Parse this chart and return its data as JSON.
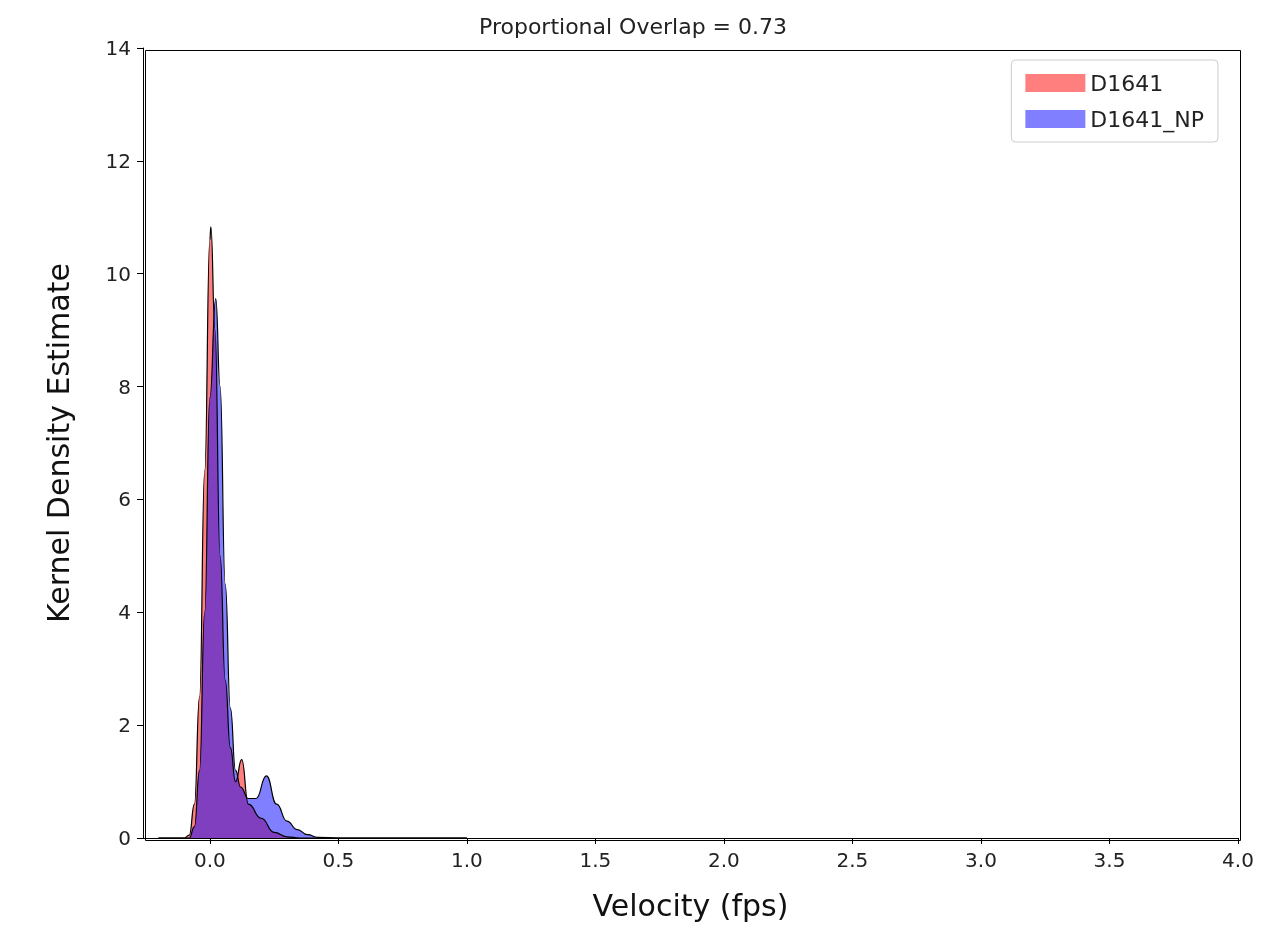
{
  "chart_data": {
    "type": "area",
    "title": "Proportional Overlap = 0.73",
    "xlabel": "Velocity (fps)",
    "ylabel": "Kernel Density Estimate",
    "xlim": [
      -0.26,
      4.0
    ],
    "xticks": [
      {
        "value": 0,
        "label": "0.0"
      },
      {
        "value": 0.5,
        "label": "0.5"
      },
      {
        "value": 1,
        "label": "1.0"
      },
      {
        "value": 1.5,
        "label": "1.5"
      },
      {
        "value": 2,
        "label": "2.0"
      },
      {
        "value": 2.5,
        "label": "2.5"
      },
      {
        "value": 3,
        "label": "3.0"
      },
      {
        "value": 3.5,
        "label": "3.5"
      },
      {
        "value": 4,
        "label": "4.0"
      }
    ],
    "ylim": [
      0,
      14
    ],
    "yticks": [
      0,
      2,
      4,
      6,
      8,
      10,
      12,
      14
    ],
    "grid": false,
    "legend": "top right",
    "marker": "none",
    "series": [
      {
        "name": "D1641",
        "color": "#ff0000",
        "x": [
          -0.2,
          -0.1,
          -0.08,
          -0.06,
          -0.04,
          -0.02,
          0,
          0.004,
          0.02,
          0.04,
          0.06,
          0.08,
          0.1,
          0.124,
          0.15,
          0.2,
          0.25,
          0.3,
          0.35,
          1.0
        ],
        "values": [
          0,
          0,
          0.05,
          0.6,
          2.5,
          6.5,
          10.6,
          10.83,
          9.0,
          5.0,
          2.8,
          1.6,
          1.0,
          1.39,
          0.6,
          0.35,
          0.1,
          0.02,
          0,
          0
        ]
      },
      {
        "name": "D1641_NP",
        "color": "#0000ff",
        "x": [
          -0.2,
          -0.08,
          -0.06,
          -0.04,
          -0.02,
          0,
          0.023,
          0.04,
          0.06,
          0.08,
          0.1,
          0.12,
          0.15,
          0.18,
          0.22,
          0.26,
          0.3,
          0.34,
          0.38,
          0.42,
          0.5,
          1.0
        ],
        "values": [
          0,
          0,
          0.2,
          1.2,
          4.0,
          7.8,
          9.56,
          8.0,
          4.5,
          2.3,
          1.2,
          0.9,
          0.7,
          0.7,
          1.1,
          0.6,
          0.3,
          0.15,
          0.06,
          0.01,
          0,
          0
        ]
      }
    ]
  }
}
